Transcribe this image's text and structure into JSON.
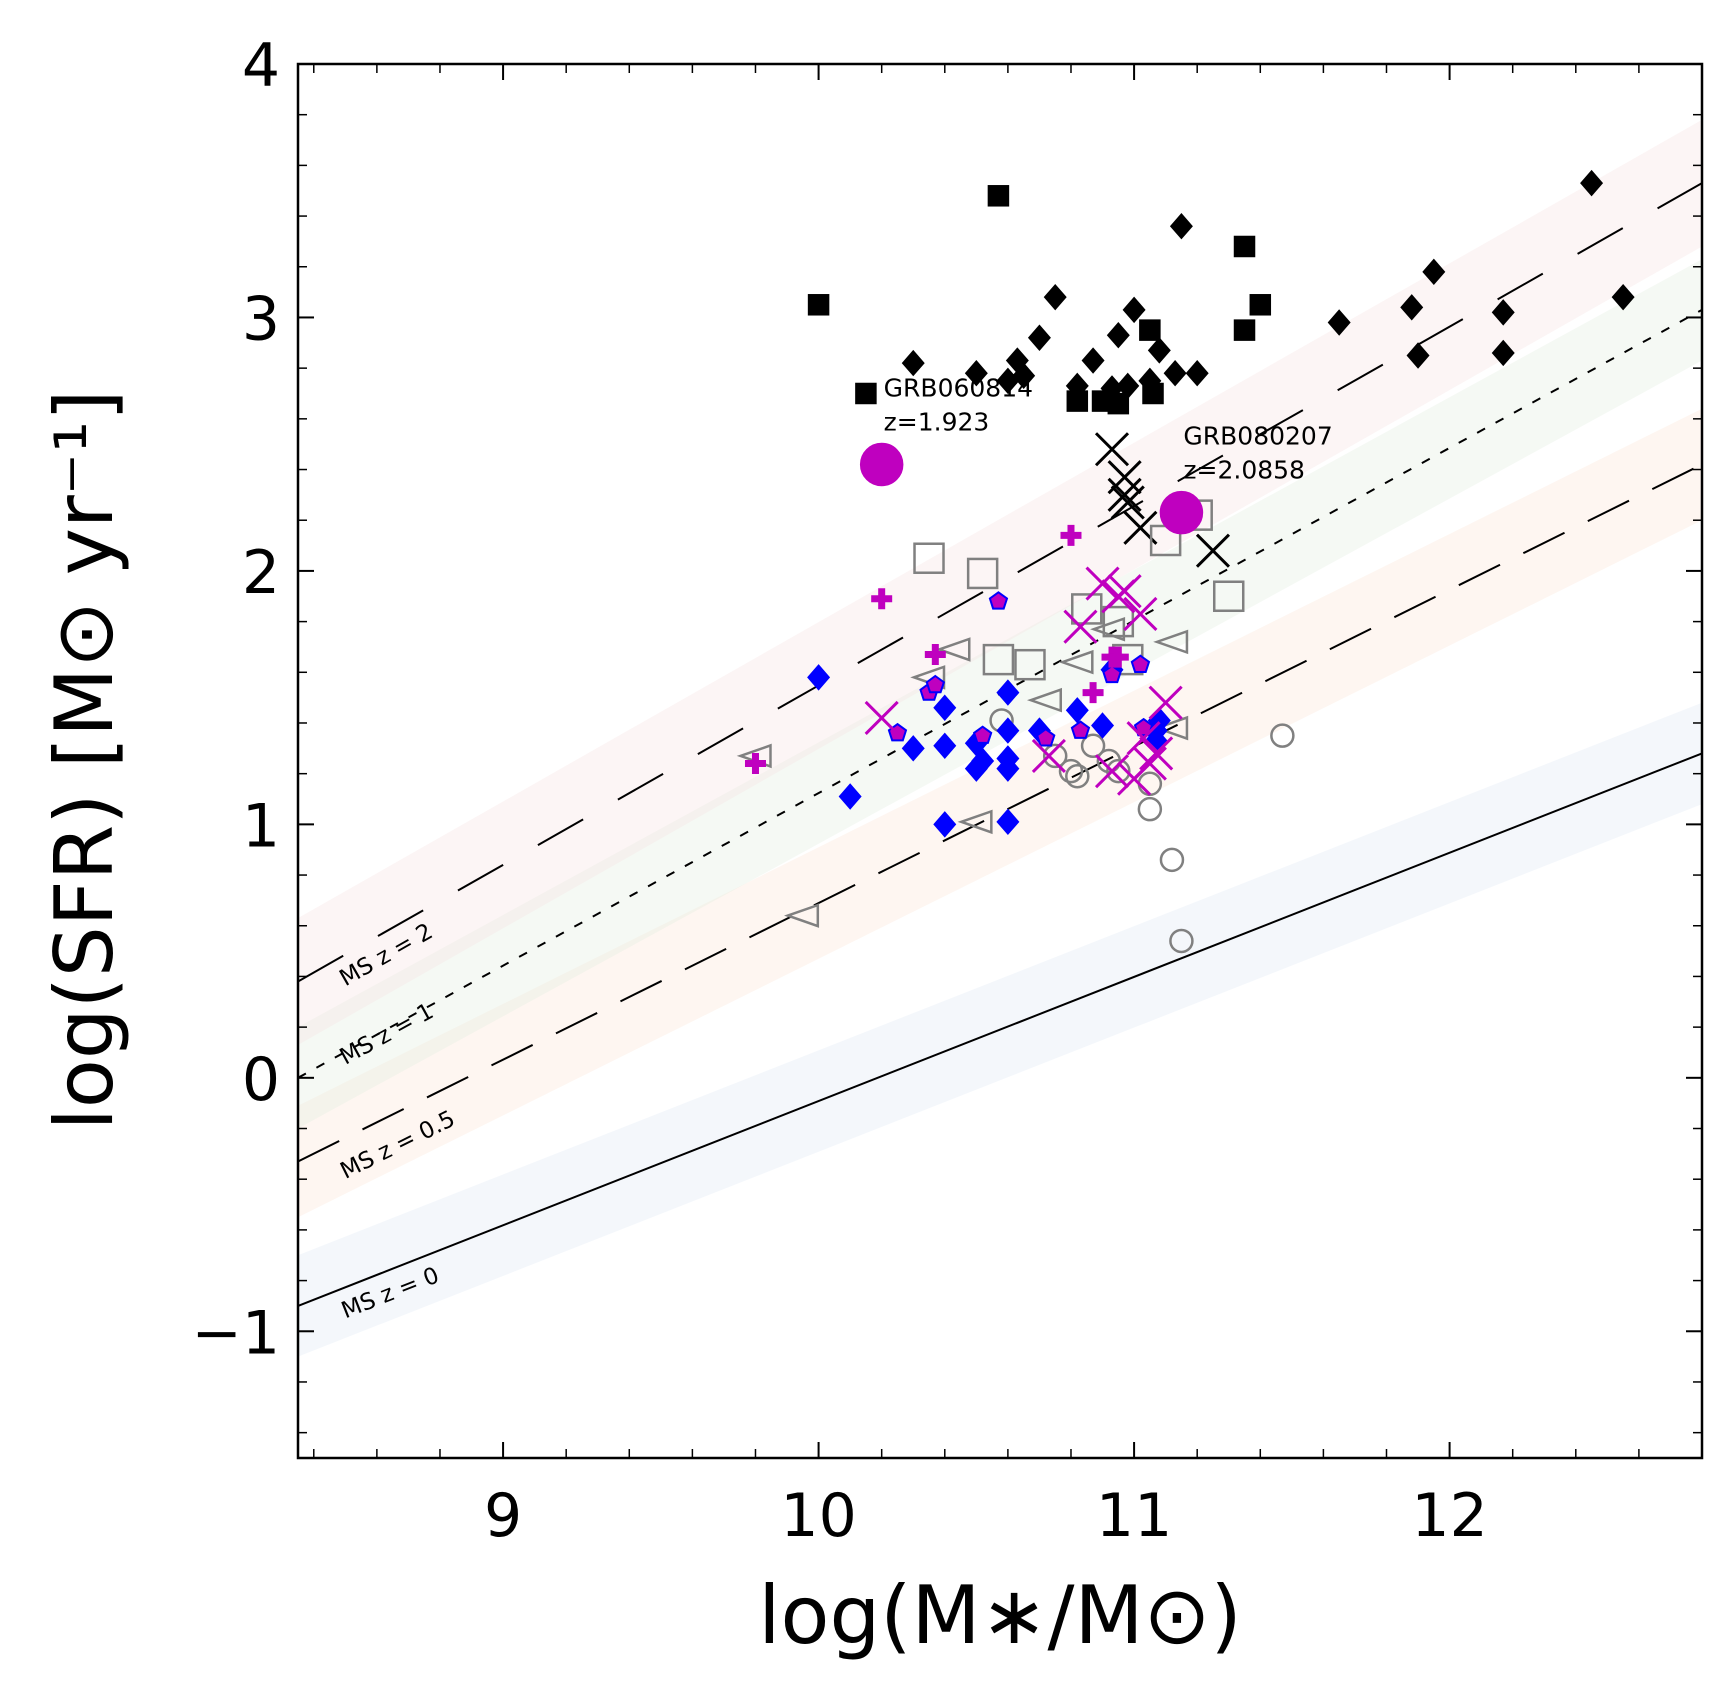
{
  "chart_data": {
    "type": "scatter",
    "title": "",
    "xlabel": "log(M∗/M⊙)",
    "ylabel": "log(SFR) [M⊙ yr⁻¹]",
    "xlim": [
      8.35,
      12.8
    ],
    "ylim": [
      -1.5,
      4.0
    ],
    "xticks": [
      9,
      10,
      11,
      12
    ],
    "xtick_labels": [
      "9",
      "10",
      "11",
      "12"
    ],
    "yticks": [
      -1,
      0,
      1,
      2,
      3,
      4
    ],
    "ytick_labels": [
      "−1",
      "0",
      "1",
      "2",
      "3",
      "4"
    ],
    "main_sequence": [
      {
        "name": "MS z = 0",
        "label": "MS z = 0",
        "label_x": 8.5,
        "label_y": -0.95,
        "x_range": [
          8.35,
          12.8
        ],
        "y_range": [
          -0.9,
          1.28
        ],
        "band_halfwidth": 0.2,
        "band_color": "#dfe9f3",
        "dash": ""
      },
      {
        "name": "MS z = 0.5",
        "label": "MS z = 0.5",
        "label_x": 8.5,
        "label_y": -0.4,
        "x_range": [
          8.35,
          12.8
        ],
        "y_range": [
          -0.33,
          2.42
        ],
        "band_halfwidth": 0.22,
        "band_color": "#fce6d6",
        "dash": "46,26"
      },
      {
        "name": "MS z = 1",
        "label": "MS z = 1",
        "label_x": 8.5,
        "label_y": 0.05,
        "x_range": [
          8.35,
          12.8
        ],
        "y_range": [
          0.0,
          3.03
        ],
        "band_halfwidth": 0.2,
        "band_color": "#e2eedf",
        "dash": "9,12"
      },
      {
        "name": "MS z = 2",
        "label": "MS z = 2",
        "label_x": 8.5,
        "label_y": 0.36,
        "x_range": [
          8.35,
          12.8
        ],
        "y_range": [
          0.38,
          3.53
        ],
        "band_halfwidth": 0.25,
        "band_color": "#f7e3e3",
        "dash": "52,40"
      }
    ],
    "series": [
      {
        "name": "black squares",
        "marker": "square",
        "fill": "#000000",
        "stroke": "#000000",
        "filled": true,
        "size": 20,
        "x": [
          10.0,
          10.15,
          10.57,
          10.82,
          10.9,
          10.95,
          11.05,
          11.06,
          11.35,
          11.4,
          11.35
        ],
        "y": [
          3.05,
          2.7,
          3.48,
          2.67,
          2.67,
          2.66,
          2.95,
          2.7,
          3.28,
          3.05,
          2.95
        ]
      },
      {
        "name": "black diamonds",
        "marker": "diamond",
        "fill": "#000000",
        "stroke": "#000000",
        "filled": true,
        "size": 21,
        "x": [
          10.3,
          10.5,
          10.6,
          10.63,
          10.65,
          10.7,
          10.75,
          10.82,
          10.87,
          10.93,
          10.95,
          10.98,
          11.0,
          11.05,
          11.08,
          11.13,
          11.15,
          11.2,
          11.65,
          11.88,
          11.9,
          11.95,
          12.17,
          12.17,
          12.45,
          12.55
        ],
        "y": [
          2.82,
          2.78,
          2.75,
          2.83,
          2.77,
          2.92,
          3.08,
          2.73,
          2.83,
          2.72,
          2.93,
          2.73,
          3.03,
          2.75,
          2.87,
          2.78,
          3.36,
          2.78,
          2.98,
          3.04,
          2.85,
          3.18,
          3.02,
          2.86,
          3.53,
          3.08
        ]
      },
      {
        "name": "black crosses",
        "marker": "x",
        "fill": "none",
        "stroke": "#000000",
        "filled": false,
        "size": 32,
        "stroke_width": 3,
        "x": [
          10.93,
          10.97,
          10.97,
          10.98,
          11.02,
          11.25
        ],
        "y": [
          2.48,
          2.37,
          2.3,
          2.27,
          2.17,
          2.08
        ]
      },
      {
        "name": "gray open squares",
        "marker": "square",
        "fill": "none",
        "stroke": "#808080",
        "filled": false,
        "size": 29,
        "stroke_width": 2.5,
        "x": [
          10.35,
          10.52,
          10.57,
          10.67,
          10.85,
          10.95,
          10.98,
          11.1,
          11.2,
          11.3
        ],
        "y": [
          2.05,
          1.99,
          1.65,
          1.63,
          1.85,
          1.8,
          1.65,
          2.12,
          2.22,
          1.9
        ]
      },
      {
        "name": "gray open triangles",
        "marker": "triangle-left",
        "fill": "none",
        "stroke": "#808080",
        "filled": false,
        "size": 30,
        "stroke_width": 2.5,
        "x": [
          9.8,
          9.95,
          10.35,
          10.43,
          10.5,
          10.72,
          10.82,
          10.92,
          11.12,
          11.12
        ],
        "y": [
          1.27,
          0.64,
          1.58,
          1.69,
          1.01,
          1.49,
          1.64,
          1.77,
          1.72,
          1.38
        ]
      },
      {
        "name": "gray open circles",
        "marker": "circle",
        "fill": "none",
        "stroke": "#808080",
        "filled": false,
        "size": 22,
        "stroke_width": 2.5,
        "x": [
          10.58,
          10.75,
          10.8,
          10.82,
          10.87,
          10.92,
          10.95,
          11.05,
          11.05,
          11.12,
          11.15,
          11.47
        ],
        "y": [
          1.41,
          1.27,
          1.21,
          1.19,
          1.31,
          1.25,
          1.21,
          1.16,
          1.06,
          0.86,
          0.54,
          1.35
        ]
      },
      {
        "name": "blue diamonds",
        "marker": "diamond",
        "fill": "#0000ff",
        "stroke": "#0000ff",
        "filled": true,
        "size": 21,
        "x": [
          10.0,
          10.1,
          10.3,
          10.4,
          10.4,
          10.4,
          10.5,
          10.5,
          10.52,
          10.6,
          10.6,
          10.6,
          10.6,
          10.6,
          10.7,
          10.82,
          10.9,
          10.93,
          11.07,
          11.07,
          11.08
        ],
        "y": [
          1.58,
          1.11,
          1.3,
          1.46,
          1.31,
          1.0,
          1.32,
          1.22,
          1.25,
          1.52,
          1.37,
          1.26,
          1.22,
          1.01,
          1.37,
          1.45,
          1.39,
          1.61,
          1.37,
          1.33,
          1.41
        ]
      },
      {
        "name": "magenta pentagons (blue edge)",
        "marker": "pentagon",
        "fill": "#bf00bf",
        "stroke": "#0000ff",
        "filled": true,
        "size": 18,
        "stroke_width": 2,
        "x": [
          10.25,
          10.35,
          10.37,
          10.52,
          10.57,
          10.72,
          10.83,
          10.93,
          11.02,
          11.03
        ],
        "y": [
          1.36,
          1.52,
          1.55,
          1.35,
          1.88,
          1.34,
          1.37,
          1.59,
          1.63,
          1.38
        ]
      },
      {
        "name": "magenta plus",
        "marker": "plus",
        "fill": "#bf00bf",
        "stroke": "#bf00bf",
        "filled": true,
        "size": 21,
        "stroke_width": 7,
        "x": [
          9.8,
          10.2,
          10.37,
          10.8,
          10.87,
          10.93,
          10.95
        ],
        "y": [
          1.24,
          1.89,
          1.67,
          2.14,
          1.52,
          1.66,
          1.66
        ]
      },
      {
        "name": "magenta crosses",
        "marker": "x",
        "fill": "none",
        "stroke": "#bf00bf",
        "filled": false,
        "size": 32,
        "stroke_width": 3,
        "x": [
          10.2,
          10.73,
          10.83,
          10.9,
          10.93,
          10.95,
          10.97,
          11.0,
          11.02,
          11.03,
          11.05,
          11.07,
          11.1
        ],
        "y": [
          1.42,
          1.27,
          1.78,
          1.95,
          1.21,
          1.9,
          1.92,
          1.18,
          1.83,
          1.34,
          1.24,
          1.28,
          1.48
        ]
      },
      {
        "name": "GRB hosts",
        "marker": "circle",
        "fill": "#bf00bf",
        "stroke": "#bf00bf",
        "filled": true,
        "size": 42,
        "x": [
          10.2,
          11.15
        ],
        "y": [
          2.42,
          2.23
        ]
      }
    ],
    "annotations": [
      {
        "lines": [
          "GRB060814",
          "z=1.923"
        ],
        "x": 10.2,
        "y": 2.42
      },
      {
        "lines": [
          "GRB080207",
          "z=2.0858"
        ],
        "x": 11.15,
        "y": 2.23
      }
    ]
  }
}
